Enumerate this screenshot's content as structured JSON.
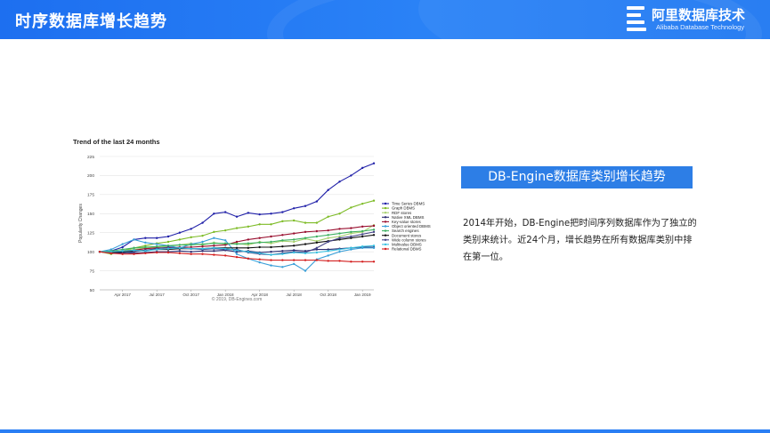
{
  "header": {
    "title": "时序数据库增长趋势",
    "logo_text": "阿里数据库技术",
    "logo_sub": "Alibaba Database Technology"
  },
  "banner": {
    "text": "DB-Engine数据库类别增长趋势"
  },
  "description": "2014年开始，DB-Engine把时间序列数据库作为了独立的类别来统计。近24个月，增长趋势在所有数据库类别中排在第一位。",
  "colors": {
    "header": "#1d6ff0",
    "banner": "#2d7ee6"
  },
  "chart_data": {
    "type": "line",
    "title": "Trend of the last 24 months",
    "ylabel": "Popularity Changes",
    "xlabel": "",
    "credit": "© 2019, DB-Engines.com",
    "ylim": [
      50,
      225
    ],
    "yticks": [
      50,
      75,
      100,
      125,
      150,
      175,
      200,
      225
    ],
    "x": [
      0,
      1,
      2,
      3,
      4,
      5,
      6,
      7,
      8,
      9,
      10,
      11,
      12,
      13,
      14,
      15,
      16,
      17,
      18,
      19,
      20,
      21,
      22,
      23,
      24
    ],
    "xticks": [
      {
        "x": 2,
        "label": "Apr 2017"
      },
      {
        "x": 5,
        "label": "Jul 2017"
      },
      {
        "x": 8,
        "label": "Oct 2017"
      },
      {
        "x": 11,
        "label": "Jan 2018"
      },
      {
        "x": 14,
        "label": "Apr 2018"
      },
      {
        "x": 17,
        "label": "Jul 2018"
      },
      {
        "x": 20,
        "label": "Oct 2018"
      },
      {
        "x": 23,
        "label": "Jan 2019"
      }
    ],
    "grid": true,
    "legend": "right",
    "series": [
      {
        "name": "Time Series DBMS",
        "color": "#1f1fa8",
        "values": [
          100,
          101,
          106,
          116,
          118,
          118,
          120,
          125,
          130,
          138,
          150,
          152,
          146,
          151,
          149,
          150,
          152,
          157,
          160,
          166,
          181,
          192,
          200,
          210,
          216
        ]
      },
      {
        "name": "Graph DBMS",
        "color": "#7dbb26",
        "values": [
          100,
          97,
          101,
          105,
          108,
          111,
          113,
          116,
          119,
          121,
          126,
          128,
          131,
          133,
          136,
          136,
          140,
          141,
          138,
          138,
          146,
          150,
          158,
          163,
          167
        ]
      },
      {
        "name": "RDF stores",
        "color": "#a8d070",
        "values": [
          100,
          99,
          101,
          103,
          105,
          106,
          107,
          109,
          111,
          109,
          112,
          110,
          111,
          109,
          113,
          111,
          114,
          113,
          117,
          114,
          118,
          120,
          124,
          126,
          135
        ]
      },
      {
        "name": "Native XML DBMS",
        "color": "#2a2a70",
        "values": [
          100,
          99,
          99,
          98,
          99,
          100,
          100,
          101,
          100,
          101,
          101,
          102,
          100,
          101,
          99,
          100,
          101,
          102,
          101,
          103,
          103,
          104,
          105,
          106,
          106
        ]
      },
      {
        "name": "Key-value stores",
        "color": "#9a1030",
        "values": [
          100,
          100,
          101,
          102,
          104,
          105,
          105,
          106,
          106,
          107,
          108,
          109,
          113,
          116,
          118,
          120,
          122,
          124,
          126,
          127,
          128,
          130,
          131,
          133,
          134
        ]
      },
      {
        "name": "Object oriented DBMS",
        "color": "#3a9fd8",
        "values": [
          100,
          103,
          110,
          116,
          112,
          110,
          108,
          105,
          110,
          113,
          118,
          115,
          97,
          91,
          86,
          82,
          80,
          84,
          75,
          90,
          95,
          100,
          103,
          105,
          105
        ]
      },
      {
        "name": "Search engines",
        "color": "#3cb060",
        "values": [
          100,
          101,
          103,
          105,
          106,
          107,
          108,
          109,
          109,
          110,
          111,
          111,
          110,
          111,
          112,
          113,
          115,
          116,
          118,
          120,
          122,
          124,
          126,
          127,
          129
        ]
      },
      {
        "name": "Document stores",
        "color": "#111111",
        "values": [
          100,
          99,
          100,
          101,
          102,
          103,
          103,
          104,
          104,
          104,
          105,
          105,
          105,
          105,
          106,
          106,
          107,
          108,
          110,
          112,
          114,
          116,
          118,
          120,
          122
        ]
      },
      {
        "name": "Wide column stores",
        "color": "#444488",
        "values": [
          100,
          98,
          98,
          100,
          102,
          104,
          106,
          105,
          104,
          103,
          104,
          103,
          103,
          99,
          97,
          96,
          98,
          100,
          99,
          105,
          113,
          118,
          120,
          123,
          126
        ]
      },
      {
        "name": "Multivalue DBMS",
        "color": "#36c0e0",
        "values": [
          100,
          100,
          101,
          102,
          101,
          103,
          104,
          105,
          104,
          104,
          105,
          104,
          102,
          100,
          98,
          96,
          97,
          99,
          98,
          99,
          101,
          103,
          105,
          107,
          108
        ]
      },
      {
        "name": "Relational DBMS",
        "color": "#d42020",
        "values": [
          100,
          98,
          97,
          97,
          98,
          99,
          99,
          98,
          97,
          97,
          96,
          95,
          93,
          91,
          90,
          89,
          89,
          89,
          89,
          89,
          88,
          88,
          87,
          87,
          87
        ]
      }
    ]
  }
}
